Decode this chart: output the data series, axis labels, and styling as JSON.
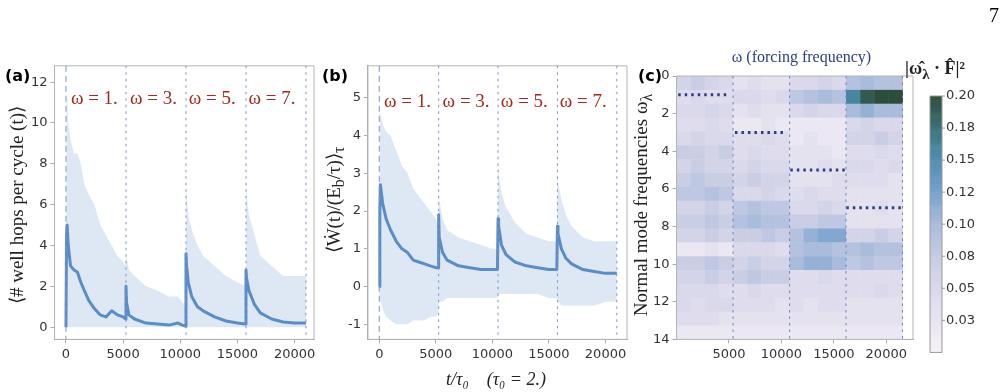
{
  "chart_data": [
    {
      "type": "line",
      "title": "(a)",
      "ylabel": "⟨# well hops per cycle (t)⟩",
      "xlim": [
        -1000,
        21700
      ],
      "xticks": [
        0,
        5000,
        10000,
        15000,
        20000
      ],
      "ylim": [
        -0.6,
        12.8
      ],
      "yticks": [
        0,
        2,
        4,
        6,
        8,
        10,
        12
      ],
      "ref_lines": [
        {
          "axis": "x",
          "value": 0,
          "line_style": "dashed",
          "color": "#7f93c9"
        },
        {
          "axis": "x",
          "value": 5250,
          "line_style": "dotted",
          "color": "#7f93c9"
        },
        {
          "axis": "x",
          "value": 10500,
          "line_style": "dotted",
          "color": "#7f93c9"
        },
        {
          "axis": "x",
          "value": 15750,
          "line_style": "dotted",
          "color": "#7f93c9"
        },
        {
          "axis": "x",
          "value": 21000,
          "line_style": "dotted",
          "color": "#7f93c9"
        }
      ],
      "annotations": [
        {
          "text": "ω = 1.",
          "x": 430,
          "y": 11.15
        },
        {
          "text": "ω = 3.",
          "x": 5610,
          "y": 11.15
        },
        {
          "text": "ω = 5.",
          "x": 10740,
          "y": 11.15
        },
        {
          "text": "ω = 7.",
          "x": 15970,
          "y": 11.15
        }
      ],
      "series": [
        {
          "color": "#5b8ec6",
          "x": [
            0,
            50,
            100,
            200,
            400,
            700,
            1000,
            1300,
            1600,
            2000,
            2500,
            3000,
            3500,
            4000,
            4500,
            5000,
            5200,
            5250,
            5300,
            5500,
            6000,
            7000,
            8000,
            9000,
            9800,
            10200,
            10450,
            10500,
            10550,
            10700,
            11000,
            11500,
            12000,
            13000,
            14000,
            15000,
            15700,
            15750,
            15800,
            16000,
            16500,
            17000,
            18000,
            19000,
            20000,
            21000
          ],
          "values": [
            0,
            4.5,
            5.0,
            4.0,
            3.0,
            2.8,
            2.7,
            2.2,
            1.8,
            1.3,
            0.9,
            0.6,
            0.5,
            0.8,
            0.6,
            0.5,
            0.4,
            2.0,
            1.2,
            0.6,
            0.4,
            0.2,
            0.15,
            0.1,
            0.2,
            0.1,
            0.05,
            3.6,
            3.0,
            2.2,
            1.5,
            1.0,
            0.8,
            0.5,
            0.3,
            0.2,
            0.15,
            2.8,
            2.4,
            1.8,
            1.1,
            0.7,
            0.4,
            0.25,
            0.2,
            0.2
          ],
          "upper": [
            0,
            11,
            11.5,
            10,
            9.2,
            8.5,
            8.5,
            8,
            7,
            6.5,
            6,
            5,
            4.5,
            4,
            3.5,
            3.2,
            3,
            3,
            3.5,
            2.8,
            2.5,
            2,
            1.8,
            1.5,
            1.5,
            1.2,
            1,
            7,
            6.5,
            5.5,
            4.8,
            4,
            3.5,
            3,
            2.5,
            2.2,
            2,
            7,
            6.5,
            5.5,
            4.5,
            3.5,
            3,
            2.5,
            2.5,
            2.5
          ],
          "lower": [
            0,
            0,
            0,
            0,
            0,
            0,
            0,
            0,
            0,
            0,
            0,
            0,
            0,
            0,
            0,
            0,
            0,
            0,
            0,
            0,
            0,
            0,
            0,
            0,
            0,
            0,
            0,
            0,
            0,
            0,
            0,
            0,
            0,
            0,
            0,
            0,
            0,
            0,
            0,
            0,
            0,
            0,
            0,
            0,
            0,
            0
          ]
        }
      ]
    },
    {
      "type": "line",
      "title": "(b)",
      "ylabel": "⟨Ẇ(t)/(E$_{b}$/τ)⟩$_{τ}$",
      "xlabel": "t/τ₀    (τ₀ = 2.)",
      "xlim": [
        -1000,
        21900
      ],
      "xticks": [
        0,
        5000,
        10000,
        15000,
        20000
      ],
      "ylim": [
        -1.4,
        5.85
      ],
      "yticks": [
        -1,
        0,
        1,
        2,
        3,
        4,
        5
      ],
      "ref_lines": [
        {
          "axis": "x",
          "value": 0,
          "line_style": "dashed",
          "color": "#7f93c9"
        },
        {
          "axis": "x",
          "value": 5250,
          "line_style": "dotted",
          "color": "#7f93c9"
        },
        {
          "axis": "x",
          "value": 10500,
          "line_style": "dotted",
          "color": "#7f93c9"
        },
        {
          "axis": "x",
          "value": 15750,
          "line_style": "dotted",
          "color": "#7f93c9"
        },
        {
          "axis": "x",
          "value": 21000,
          "line_style": "dotted",
          "color": "#7f93c9"
        }
      ],
      "annotations": [
        {
          "text": "ω = 1.",
          "x": 420,
          "y": 4.88
        },
        {
          "text": "ω = 3.",
          "x": 5600,
          "y": 4.88
        },
        {
          "text": "ω = 5.",
          "x": 10750,
          "y": 4.88
        },
        {
          "text": "ω = 7.",
          "x": 15950,
          "y": 4.88
        }
      ],
      "series": [
        {
          "color": "#5b8ec6",
          "x": [
            0,
            50,
            100,
            300,
            600,
            1000,
            1500,
            2000,
            2500,
            3000,
            3500,
            4000,
            4500,
            5000,
            5200,
            5250,
            5300,
            5600,
            6000,
            7000,
            8000,
            9000,
            10000,
            10450,
            10500,
            10550,
            10800,
            11200,
            12000,
            13000,
            14000,
            15000,
            15700,
            15750,
            15800,
            16100,
            16500,
            17000,
            18000,
            19000,
            20000,
            21000
          ],
          "values": [
            0,
            2.0,
            2.7,
            2.2,
            1.8,
            1.5,
            1.2,
            1.0,
            0.9,
            0.7,
            0.65,
            0.6,
            0.55,
            0.5,
            0.5,
            1.9,
            1.3,
            0.9,
            0.7,
            0.55,
            0.5,
            0.45,
            0.45,
            0.45,
            1.8,
            1.6,
            1.1,
            0.85,
            0.65,
            0.55,
            0.5,
            0.45,
            0.45,
            1.6,
            1.4,
            1.0,
            0.75,
            0.6,
            0.45,
            0.4,
            0.35,
            0.35
          ],
          "upper": [
            0,
            4.8,
            4.6,
            4.3,
            4.1,
            4.0,
            3.6,
            3.2,
            3.0,
            2.6,
            2.4,
            2.2,
            2.0,
            1.8,
            1.6,
            2.5,
            2.3,
            1.8,
            1.5,
            1.3,
            1.2,
            1.1,
            1.0,
            1.0,
            3.2,
            3.0,
            2.5,
            2.1,
            1.7,
            1.4,
            1.3,
            1.2,
            1.2,
            3.0,
            2.8,
            2.3,
            1.9,
            1.6,
            1.3,
            1.2,
            1.2,
            1.2
          ],
          "lower": [
            0,
            -0.3,
            -0.4,
            -0.6,
            -0.8,
            -0.9,
            -1.0,
            -1.0,
            -1.0,
            -0.9,
            -0.9,
            -0.9,
            -0.8,
            -0.8,
            -0.7,
            -0.5,
            -0.4,
            -0.4,
            -0.3,
            -0.3,
            -0.3,
            -0.3,
            -0.3,
            -0.3,
            -0.2,
            -0.2,
            -0.2,
            -0.2,
            -0.2,
            -0.2,
            -0.2,
            -0.3,
            -0.3,
            -0.4,
            -0.4,
            -0.5,
            -0.5,
            -0.5,
            -0.5,
            -0.5,
            -0.4,
            -0.4
          ]
        }
      ]
    },
    {
      "type": "heatmap",
      "title": "(c)",
      "ylabel": "Normal mode frequencies ω$_{λ}$",
      "clabel": "|ω̂$_{λ}$ · F̂|²",
      "legend": "top",
      "xlim": [
        0,
        22550
      ],
      "xticks": [
        5000,
        10000,
        15000,
        20000
      ],
      "ylim": [
        14,
        0
      ],
      "yticks": [
        0,
        2,
        4,
        6,
        8,
        10,
        12,
        14
      ],
      "clim": [
        0,
        0.2
      ],
      "cticks": [
        {
          "value": 0.025,
          "label": "0.03"
        },
        {
          "value": 0.05,
          "label": "0.05"
        },
        {
          "value": 0.075,
          "label": "0.08"
        },
        {
          "value": 0.1,
          "label": "0.10"
        },
        {
          "value": 0.125,
          "label": "0.12"
        },
        {
          "value": 0.15,
          "label": "0.15"
        },
        {
          "value": 0.175,
          "label": "0.18"
        },
        {
          "value": 0.2,
          "label": "0.20"
        }
      ],
      "ref_lines": [
        {
          "axis": "x",
          "value": 5390,
          "line_style": "dotted",
          "color": "#6f84bf"
        },
        {
          "axis": "x",
          "value": 10780,
          "line_style": "dotted",
          "color": "#6f84bf"
        },
        {
          "axis": "x",
          "value": 16160,
          "line_style": "dotted",
          "color": "#6f84bf"
        },
        {
          "axis": "x",
          "value": 21550,
          "line_style": "dotted",
          "color": "#6f84bf"
        }
      ],
      "annotations": [
        "7"
      ],
      "x": [
        673,
        2020,
        3367,
        4714,
        6061,
        7408,
        8755,
        10102,
        11448,
        12795,
        14142,
        15489,
        16836,
        18183,
        19530,
        20877
      ],
      "cells": [
        [
          0.06,
          0.07,
          0.06,
          0.05,
          0.03,
          0.04,
          0.03,
          0.03,
          0.05,
          0.05,
          0.06,
          0.05,
          0.09,
          0.1,
          0.09,
          0.09
        ],
        [
          0.04,
          0.05,
          0.04,
          0.04,
          0.05,
          0.05,
          0.04,
          0.05,
          0.08,
          0.09,
          0.1,
          0.09,
          0.16,
          0.19,
          0.2,
          0.2
        ],
        [
          0.05,
          0.05,
          0.06,
          0.05,
          0.03,
          0.04,
          0.03,
          0.03,
          0.05,
          0.06,
          0.05,
          0.05,
          0.1,
          0.11,
          0.1,
          0.1
        ],
        [
          0.04,
          0.04,
          0.05,
          0.04,
          0.02,
          0.02,
          0.03,
          0.02,
          0.02,
          0.02,
          0.02,
          0.02,
          0.05,
          0.06,
          0.05,
          0.05
        ],
        [
          0.05,
          0.06,
          0.05,
          0.05,
          0.04,
          0.04,
          0.05,
          0.04,
          0.02,
          0.03,
          0.02,
          0.02,
          0.06,
          0.06,
          0.07,
          0.06
        ],
        [
          0.07,
          0.07,
          0.06,
          0.07,
          0.04,
          0.05,
          0.04,
          0.04,
          0.03,
          0.03,
          0.03,
          0.02,
          0.04,
          0.04,
          0.05,
          0.04
        ],
        [
          0.06,
          0.07,
          0.06,
          0.06,
          0.05,
          0.06,
          0.05,
          0.05,
          0.03,
          0.03,
          0.04,
          0.03,
          0.05,
          0.05,
          0.04,
          0.05
        ],
        [
          0.07,
          0.08,
          0.07,
          0.07,
          0.06,
          0.07,
          0.06,
          0.06,
          0.03,
          0.03,
          0.03,
          0.04,
          0.04,
          0.04,
          0.04,
          0.03
        ],
        [
          0.08,
          0.08,
          0.09,
          0.08,
          0.05,
          0.05,
          0.06,
          0.05,
          0.04,
          0.05,
          0.04,
          0.04,
          0.03,
          0.03,
          0.03,
          0.03
        ],
        [
          0.06,
          0.06,
          0.07,
          0.06,
          0.08,
          0.09,
          0.08,
          0.08,
          0.05,
          0.05,
          0.06,
          0.05,
          0.03,
          0.03,
          0.04,
          0.03
        ],
        [
          0.07,
          0.07,
          0.08,
          0.07,
          0.09,
          0.1,
          0.09,
          0.09,
          0.07,
          0.07,
          0.08,
          0.08,
          0.03,
          0.03,
          0.03,
          0.03
        ],
        [
          0.06,
          0.06,
          0.07,
          0.06,
          0.07,
          0.07,
          0.08,
          0.07,
          0.09,
          0.11,
          0.12,
          0.12,
          0.06,
          0.06,
          0.07,
          0.06
        ],
        [
          0.02,
          0.02,
          0.03,
          0.02,
          0.05,
          0.05,
          0.05,
          0.04,
          0.09,
          0.1,
          0.1,
          0.09,
          0.09,
          0.1,
          0.09,
          0.09
        ],
        [
          0.07,
          0.07,
          0.08,
          0.07,
          0.06,
          0.07,
          0.06,
          0.06,
          0.1,
          0.11,
          0.11,
          0.1,
          0.08,
          0.09,
          0.08,
          0.08
        ],
        [
          0.06,
          0.06,
          0.07,
          0.06,
          0.07,
          0.08,
          0.07,
          0.07,
          0.04,
          0.04,
          0.05,
          0.04,
          0.04,
          0.04,
          0.04,
          0.04
        ],
        [
          0.05,
          0.05,
          0.05,
          0.04,
          0.04,
          0.05,
          0.04,
          0.04,
          0.04,
          0.04,
          0.04,
          0.04,
          0.04,
          0.04,
          0.05,
          0.04
        ],
        [
          0.05,
          0.04,
          0.05,
          0.05,
          0.04,
          0.04,
          0.04,
          0.03,
          0.04,
          0.03,
          0.04,
          0.04,
          0.03,
          0.03,
          0.03,
          0.03
        ],
        [
          0.04,
          0.04,
          0.04,
          0.03,
          0.03,
          0.03,
          0.03,
          0.03,
          0.03,
          0.03,
          0.03,
          0.03,
          0.03,
          0.03,
          0.03,
          0.03
        ],
        [
          0.02,
          0.02,
          0.02,
          0.02,
          0.02,
          0.02,
          0.02,
          0.02,
          0.02,
          0.02,
          0.02,
          0.02,
          0.02,
          0.02,
          0.02,
          0.02
        ]
      ],
      "series": [
        {
          "type": "line",
          "name": "ω (forcing frequency)",
          "color": "#2b3f80",
          "line_style": "dotted",
          "x": [
            160,
            5030,
            5300,
            5570,
            10470,
            10660,
            10850,
            16040,
            16110,
            16190,
            21540
          ],
          "values": [
            1,
            1,
            null,
            3,
            3,
            null,
            5,
            5,
            null,
            7,
            7
          ]
        }
      ]
    }
  ]
}
